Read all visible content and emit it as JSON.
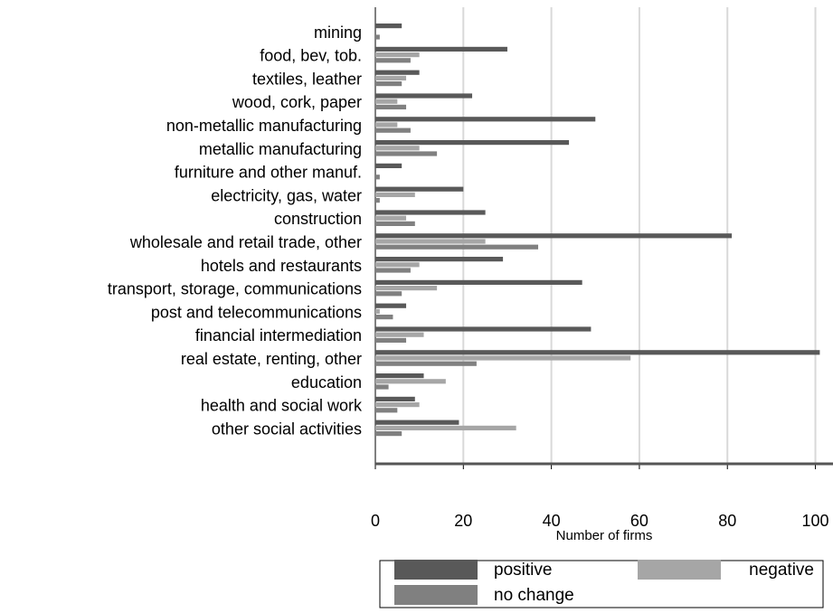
{
  "chart_data": {
    "type": "bar",
    "orientation": "horizontal",
    "x_label": "Number of firms",
    "categories": [
      "mining",
      "food, bev, tob.",
      "textiles, leather",
      "wood, cork, paper",
      "non-metallic manufacturing",
      "metallic manufacturing",
      "furniture and other manuf.",
      "electricity, gas, water",
      "construction",
      "wholesale and retail trade, other",
      "hotels and restaurants",
      "transport, storage, communications",
      "post and telecommunications",
      "financial intermediation",
      "real estate, renting, other",
      "education",
      "health and social work",
      "other social activities"
    ],
    "series": [
      {
        "name": "positive",
        "color": "#595959",
        "values": [
          6,
          30,
          10,
          22,
          50,
          44,
          6,
          20,
          25,
          81,
          29,
          47,
          7,
          49,
          101,
          11,
          9,
          19
        ]
      },
      {
        "name": "negative",
        "color": "#a6a6a6",
        "values": [
          0,
          10,
          7,
          5,
          5,
          10,
          0,
          9,
          7,
          25,
          10,
          14,
          1,
          11,
          58,
          16,
          10,
          32
        ]
      },
      {
        "name": "no change",
        "color": "#808080",
        "values": [
          1,
          8,
          6,
          7,
          8,
          14,
          1,
          1,
          9,
          37,
          8,
          6,
          4,
          7,
          23,
          3,
          5,
          6
        ]
      }
    ],
    "xlim": [
      0,
      104
    ],
    "xticks": [
      0,
      20,
      40,
      60,
      80,
      100
    ],
    "grid": true,
    "legend_position": "bottom"
  }
}
